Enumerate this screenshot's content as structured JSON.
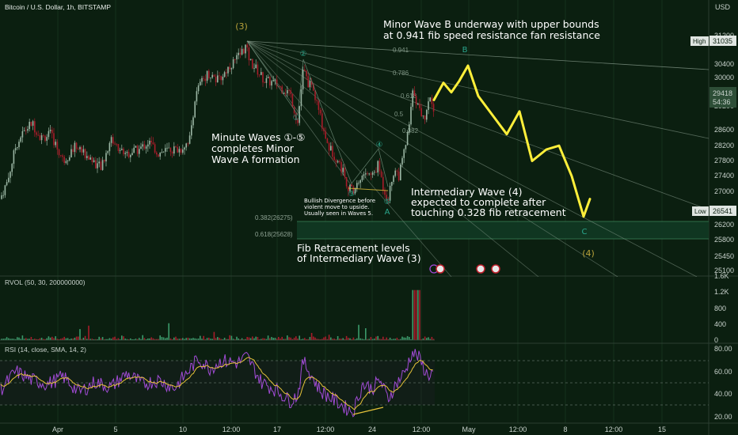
{
  "header": {
    "symbol_title": "Bitcoin / U.S. Dollar, 1h, BITSTAMP",
    "currency": "USD"
  },
  "colors": {
    "background": "#0b1f10",
    "up": "#9bb6a4",
    "down": "#a81c2a",
    "projection": "#ffef3a",
    "rsi": "#a24bd6",
    "rsi_ma": "#e5c23a",
    "fib": "#8fa394",
    "wave_label": "#2aa78d"
  },
  "price_axis": {
    "ticks": [
      "31200",
      "30400",
      "30000",
      "29600",
      "29200",
      "28600",
      "28200",
      "27800",
      "27400",
      "27000",
      "26200",
      "25800",
      "25450",
      "25100"
    ],
    "high_label": "High",
    "high_value": "31035",
    "last_value": "29418",
    "countdown": "54:36",
    "low_label": "Low",
    "low_value": "26541"
  },
  "time_axis": {
    "labels": [
      "Apr",
      "5",
      "10",
      "12:00",
      "17",
      "12:00",
      "24",
      "12:00",
      "May",
      "12:00",
      "8",
      "12:00",
      "15"
    ]
  },
  "waves": {
    "intermediate_3": "(3)",
    "intermediate_4": "(4)",
    "minor_a": "A",
    "minor_b": "B",
    "minor_c": "C",
    "minute": [
      "①",
      "②",
      "③",
      "④",
      "⑤"
    ]
  },
  "fib_fan_labels": [
    "0.941",
    "0.786",
    "0.618",
    "0.5",
    "0.382"
  ],
  "fib_levels": [
    "0.382(26275)",
    "0.618(25628)"
  ],
  "annotations": {
    "wave_b_line1": "Minor Wave B underway with upper bounds",
    "wave_b_line2": "at 0.941 fib speed resistance fan resistance",
    "minute_line1": "Minute Waves ①-⑤",
    "minute_line2": "completes Minor",
    "minute_line3": "Wave A formation",
    "divergence_line1": "Bullish Divergence before",
    "divergence_line2": "violent move to upside.",
    "divergence_line3": "Usually seen in Waves 5.",
    "intermediary_line1": "Intermediary Wave (4)",
    "intermediary_line2": "expected to complete after",
    "intermediary_line3": "touching 0.328 fib retracement",
    "fib_line1": "Fib Retracement levels",
    "fib_line2": "of Intermediary Wave (3)"
  },
  "rvol": {
    "title": "RVOL (50, 30, 200000000)",
    "ticks": [
      "1.6K",
      "1.2K",
      "800",
      "400",
      "0"
    ]
  },
  "rsi": {
    "title": "RSI (14, close, SMA, 14, 2)",
    "ticks": [
      "80.00",
      "60.00",
      "40.00",
      "20.00"
    ]
  },
  "chart_data": {
    "type": "candlestick",
    "symbol": "Bitcoin / U.S. Dollar",
    "timeframe": "1h",
    "exchange": "BITSTAMP",
    "price_range": [
      25000,
      31600
    ],
    "key_points": [
      {
        "label": "(3)",
        "x": "Apr 14",
        "price": 31035
      },
      {
        "label": "②",
        "x": "Apr 19",
        "price": 30400
      },
      {
        "label": "③",
        "x": "Apr 21",
        "price": 27100
      },
      {
        "label": "④",
        "x": "Apr 23",
        "price": 27800
      },
      {
        "label": "⑤ / A",
        "x": "Apr 24",
        "price": 26950
      },
      {
        "label": "last",
        "x": "Apr 27",
        "price": 29418
      }
    ],
    "projection": [
      {
        "x": "Apr 27",
        "price": 29600
      },
      {
        "label": "B",
        "x": "Apr 28",
        "price": 30300
      },
      {
        "x": "Apr 29",
        "price": 29400
      },
      {
        "x": "May 1",
        "price": 28700
      },
      {
        "x": "May 3",
        "price": 28000
      },
      {
        "x": "May 5",
        "price": 28000
      },
      {
        "label": "C / (4)",
        "x": "May 9",
        "price": 26541
      }
    ],
    "rvol_range": [
      0,
      1600
    ],
    "rsi_range": [
      15,
      85
    ]
  }
}
